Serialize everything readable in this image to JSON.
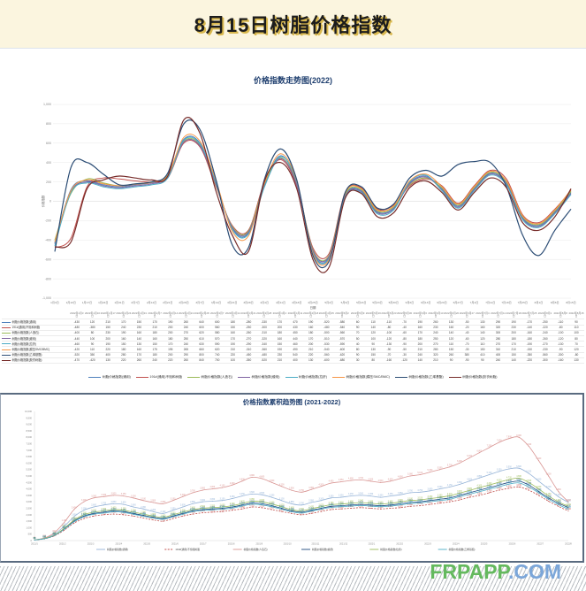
{
  "header": {
    "title": "8月15日树脂价格指数"
  },
  "watermark": {
    "green": "FRPAPP",
    "blue": ".COM"
  },
  "chart_data": [
    {
      "type": "line",
      "title": "价格指数走势图(2022)",
      "xlabel": "日期",
      "ylabel": "价格指数",
      "ylim": [
        -1000,
        1000
      ],
      "ytick_step": 200,
      "grid": true,
      "legend_position": "bottom",
      "year_prefix": "2022年",
      "categories": [
        "1月3日",
        "1月10日",
        "1月17日",
        "1月24日",
        "1月31日",
        "2月7日",
        "2月14日",
        "2月21日",
        "2月28日",
        "3月7日",
        "3月14日",
        "3月21日",
        "3月28日",
        "4月4日",
        "4月11日",
        "4月18日",
        "4月25日",
        "5月2日",
        "5月9日",
        "5月16日",
        "5月23日",
        "5月30日",
        "6月6日",
        "6月13日",
        "6月20日",
        "6月27日",
        "7月4日",
        "7月11日",
        "7月18日",
        "7月25日",
        "8月1日",
        "8月8日",
        "8月15日"
      ],
      "series": [
        {
          "name": "树脂价格指数(通用)",
          "color": "#4F81BD",
          "width": 1.0,
          "values": [
            -430,
            120,
            210,
            170,
            150,
            170,
            190,
            260,
            640,
            600,
            180,
            -280,
            -330,
            170,
            470,
            190,
            -520,
            -580,
            60,
            110,
            -110,
            -70,
            190,
            260,
            130,
            -50,
            130,
            290,
            190,
            -170,
            -250,
            -110,
            90
          ]
        },
        {
          "name": "191#(通用)不饱和树脂",
          "color": "#C0504D",
          "width": 1.0,
          "values": [
            -480,
            -380,
            150,
            240,
            230,
            210,
            200,
            240,
            600,
            560,
            150,
            -250,
            -300,
            200,
            430,
            160,
            -480,
            -540,
            90,
            140,
            -80,
            -40,
            160,
            230,
            160,
            -20,
            160,
            320,
            230,
            -140,
            -220,
            -80,
            110
          ]
        },
        {
          "name": "树脂价格指数(人造石)",
          "color": "#9BBB59",
          "width": 1.0,
          "values": [
            -400,
            80,
            230,
            190,
            160,
            180,
            200,
            270,
            620,
            580,
            160,
            -260,
            -310,
            180,
            450,
            180,
            -500,
            -560,
            70,
            120,
            -100,
            -60,
            170,
            240,
            140,
            -40,
            140,
            300,
            200,
            -160,
            -240,
            -100,
            100
          ]
        },
        {
          "name": "树脂价格指数(缠绕)",
          "color": "#8064A2",
          "width": 1.0,
          "values": [
            -440,
            100,
            200,
            160,
            140,
            160,
            180,
            250,
            610,
            570,
            170,
            -270,
            -320,
            160,
            440,
            170,
            -510,
            -570,
            50,
            100,
            -120,
            -80,
            180,
            250,
            120,
            -60,
            120,
            280,
            180,
            -180,
            -260,
            -120,
            80
          ]
        },
        {
          "name": "树脂价格指数(拉挤)",
          "color": "#4BACC6",
          "width": 1.0,
          "values": [
            -460,
            90,
            190,
            150,
            130,
            150,
            170,
            240,
            630,
            590,
            190,
            -290,
            -340,
            150,
            460,
            200,
            -530,
            -590,
            40,
            90,
            -130,
            -90,
            200,
            270,
            110,
            -70,
            110,
            270,
            170,
            -190,
            -270,
            -130,
            70
          ]
        },
        {
          "name": "树脂价格指数(模压SMC/BMC)",
          "color": "#F79646",
          "width": 1.0,
          "values": [
            -420,
            110,
            220,
            180,
            160,
            175,
            195,
            265,
            660,
            620,
            210,
            -310,
            -360,
            190,
            490,
            210,
            -540,
            -600,
            80,
            130,
            -90,
            -50,
            210,
            280,
            150,
            -30,
            150,
            310,
            210,
            -150,
            -230,
            -90,
            120
          ]
        },
        {
          "name": "树脂价格指数(乙烯基酯)",
          "color": "#2C4D75",
          "width": 1.2,
          "values": [
            -520,
            350,
            400,
            280,
            170,
            180,
            200,
            290,
            800,
            740,
            220,
            -450,
            -480,
            230,
            540,
            220,
            -560,
            -620,
            90,
            150,
            -70,
            -30,
            240,
            320,
            260,
            380,
            410,
            400,
            150,
            -350,
            -560,
            -300,
            -80
          ]
        },
        {
          "name": "树脂价格指数(胶衣树脂)",
          "color": "#772C2A",
          "width": 1.2,
          "values": [
            -470,
            -420,
            130,
            220,
            260,
            240,
            220,
            260,
            840,
            700,
            100,
            -350,
            -520,
            210,
            400,
            130,
            -600,
            -680,
            30,
            80,
            -160,
            -120,
            140,
            210,
            90,
            -90,
            90,
            240,
            140,
            -220,
            -300,
            -160,
            130
          ]
        }
      ]
    },
    {
      "type": "line",
      "title": "价格指数累积趋势图 (2021-2022)",
      "ylim": [
        0,
        10000
      ],
      "ytick_step": 500,
      "grid": false,
      "point_labels": true,
      "legend_position": "bottom",
      "x_ticks": [
        "2021/1",
        "2021/2",
        "2021/3",
        "2021/4",
        "2021/5",
        "2021/6",
        "2021/7",
        "2021/8",
        "2021/9",
        "2021/10",
        "2021/11",
        "2021/12",
        "2022/1",
        "2022/2",
        "2022/3",
        "2022/4",
        "2022/5",
        "2022/6",
        "2022/7",
        "2022/8"
      ],
      "series": [
        {
          "name": "树脂价格指数(通用)",
          "color": "#95B3D7",
          "width": 0.8,
          "values": [
            55,
            180,
            500,
            1100,
            1850,
            2350,
            2600,
            2750,
            2850,
            2800,
            2600,
            2450,
            2250,
            2100,
            2350,
            2600,
            2850,
            3000,
            3050,
            3100,
            3250,
            3450,
            3600,
            3550,
            3350,
            3100,
            2850,
            2750,
            2950,
            3100,
            3300,
            3350,
            3450,
            3500,
            3450,
            3350,
            3450,
            3550,
            3700,
            3750,
            3850,
            4000,
            4150,
            4350,
            4600,
            4850,
            5100,
            5350,
            5550,
            5600,
            5200,
            4600,
            4000,
            3400,
            2950
          ]
        },
        {
          "name": "191#(通用)不饱和树脂",
          "color": "#C0504D",
          "width": 0.8,
          "dash": "2,1.4",
          "values": [
            45,
            130,
            360,
            800,
            1350,
            1700,
            1900,
            2000,
            2050,
            2000,
            1900,
            1750,
            1600,
            1500,
            1700,
            1900,
            2050,
            2150,
            2200,
            2250,
            2350,
            2450,
            2600,
            2550,
            2400,
            2250,
            2100,
            2000,
            2100,
            2250,
            2400,
            2450,
            2500,
            2550,
            2500,
            2450,
            2500,
            2550,
            2650,
            2700,
            2800,
            2900,
            3000,
            3150,
            3350,
            3500,
            3700,
            3900,
            4050,
            4150,
            3900,
            3500,
            3050,
            2650,
            2300
          ]
        },
        {
          "name": "树脂价格指数(人造石)",
          "color": "#D99694",
          "width": 0.8,
          "values": [
            60,
            200,
            600,
            1400,
            2400,
            3000,
            3300,
            3400,
            3500,
            3450,
            3300,
            3100,
            2950,
            2850,
            3100,
            3400,
            3700,
            3900,
            4000,
            4100,
            4300,
            4600,
            4900,
            4800,
            4500,
            4200,
            3900,
            3750,
            3950,
            4200,
            4450,
            4550,
            4650,
            4700,
            4600,
            4500,
            4600,
            4800,
            5000,
            5100,
            5300,
            5500,
            5700,
            6000,
            6400,
            6800,
            7200,
            7600,
            7900,
            8000,
            7300,
            6200,
            5000,
            3800,
            3000
          ]
        },
        {
          "name": "树脂价格指数(缠绕)",
          "color": "#1F497D",
          "width": 0.8,
          "values": [
            50,
            150,
            400,
            900,
            1500,
            1900,
            2100,
            2200,
            2300,
            2250,
            2100,
            1950,
            1800,
            1700,
            1900,
            2100,
            2300,
            2400,
            2450,
            2500,
            2600,
            2750,
            2900,
            2850,
            2700,
            2500,
            2300,
            2200,
            2350,
            2500,
            2650,
            2700,
            2750,
            2800,
            2750,
            2700,
            2750,
            2850,
            2950,
            3000,
            3100,
            3200,
            3300,
            3500,
            3700,
            3900,
            4100,
            4300,
            4500,
            4600,
            4300,
            3800,
            3300,
            2900,
            2550
          ]
        },
        {
          "name": "树脂价格指数(拉挤)",
          "color": "#9BBB59",
          "width": 0.8,
          "values": [
            52,
            160,
            420,
            950,
            1580,
            2000,
            2200,
            2300,
            2400,
            2350,
            2200,
            2050,
            1900,
            1800,
            2000,
            2200,
            2400,
            2500,
            2550,
            2600,
            2700,
            2870,
            3050,
            3000,
            2830,
            2620,
            2400,
            2300,
            2470,
            2620,
            2780,
            2830,
            2890,
            2940,
            2890,
            2830,
            2890,
            2990,
            3100,
            3150,
            3250,
            3350,
            3470,
            3670,
            3880,
            4100,
            4300,
            4520,
            4720,
            4830,
            4500,
            4000,
            3450,
            3000,
            2650
          ]
        },
        {
          "name": "树脂价格指数(乙烯基酯)",
          "color": "#4BACC6",
          "width": 0.8,
          "values": [
            48,
            145,
            390,
            870,
            1450,
            1840,
            2040,
            2130,
            2230,
            2180,
            2040,
            1890,
            1750,
            1650,
            1840,
            2040,
            2230,
            2330,
            2380,
            2430,
            2520,
            2670,
            2810,
            2760,
            2620,
            2430,
            2230,
            2130,
            2280,
            2430,
            2570,
            2620,
            2670,
            2720,
            2670,
            2620,
            2670,
            2760,
            2860,
            2910,
            3010,
            3100,
            3200,
            3400,
            3590,
            3780,
            3980,
            4170,
            4370,
            4460,
            4150,
            3700,
            3200,
            2780,
            2430
          ]
        }
      ]
    }
  ]
}
